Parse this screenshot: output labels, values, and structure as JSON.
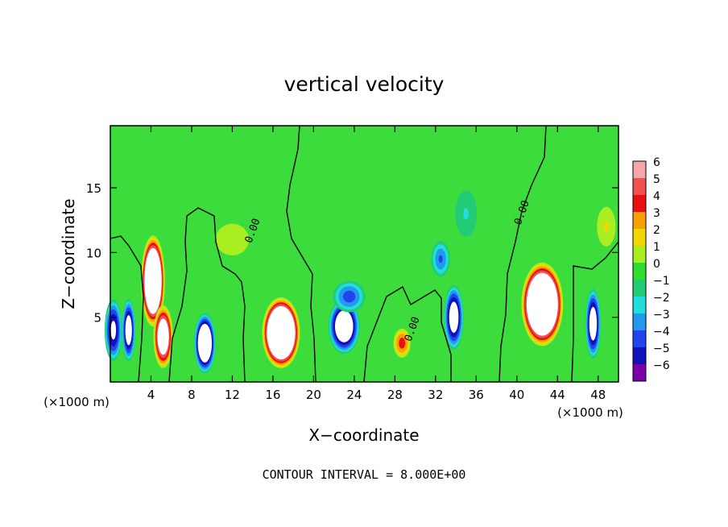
{
  "chart_data": {
    "type": "heatmap",
    "title": "vertical velocity",
    "xlabel": "X−coordinate",
    "ylabel": "Z−coordinate",
    "x_unit_left": "(×1000 m)",
    "x_unit_right": "(×1000 m)",
    "footer": "CONTOUR INTERVAL = 8.000E+00",
    "xlim": [
      0,
      50
    ],
    "ylim": [
      0,
      19.8
    ],
    "x_ticks": [
      "4",
      "8",
      "12",
      "16",
      "20",
      "24",
      "28",
      "32",
      "36",
      "40",
      "44",
      "48"
    ],
    "y_ticks": [
      "5",
      "10",
      "15"
    ],
    "colorbar": {
      "labels": [
        "6",
        "5",
        "4",
        "3",
        "2",
        "1",
        "0",
        "−1",
        "−2",
        "−3",
        "−4",
        "−5",
        "−6"
      ],
      "colors": [
        "#f6a8a8",
        "#f05050",
        "#e81010",
        "#f7a000",
        "#f2d800",
        "#aaee22",
        "#2fdd2f",
        "#22cc77",
        "#22dddd",
        "#2299ee",
        "#2244ee",
        "#1111bb",
        "#7a00aa"
      ]
    },
    "contour_labels": [
      {
        "text": "0.00",
        "x": 14.3,
        "y": 11.6
      },
      {
        "text": "0.00",
        "x": 30.0,
        "y": 4.0
      },
      {
        "text": "0.00",
        "x": 40.8,
        "y": 13.0
      }
    ],
    "cells": [
      {
        "x": 0.3,
        "z": 4.0,
        "w": -6,
        "sx": 0.9,
        "sz": 2.5
      },
      {
        "x": 1.8,
        "z": 4.0,
        "w": -7,
        "sx": 0.7,
        "sz": 2.5
      },
      {
        "x": 4.2,
        "z": 7.8,
        "w": 11,
        "sx": 1.2,
        "sz": 3.6
      },
      {
        "x": 5.2,
        "z": 3.5,
        "w": 8,
        "sx": 1.0,
        "sz": 2.5
      },
      {
        "x": 9.3,
        "z": 3.0,
        "w": -9,
        "sx": 1.1,
        "sz": 2.4
      },
      {
        "x": 16.8,
        "z": 3.8,
        "w": 12,
        "sx": 1.9,
        "sz": 2.8
      },
      {
        "x": 23.0,
        "z": 4.3,
        "w": -8,
        "sx": 1.6,
        "sz": 2.2
      },
      {
        "x": 23.5,
        "z": 6.6,
        "w": -4,
        "sx": 1.7,
        "sz": 1.3
      },
      {
        "x": 28.7,
        "z": 3.0,
        "w": 4,
        "sx": 0.9,
        "sz": 1.2
      },
      {
        "x": 33.8,
        "z": 5.0,
        "w": -7,
        "sx": 1.0,
        "sz": 2.6
      },
      {
        "x": 32.5,
        "z": 9.5,
        "w": -3.5,
        "sx": 1.0,
        "sz": 1.5
      },
      {
        "x": 35.0,
        "z": 13.0,
        "w": -1.5,
        "sx": 1.3,
        "sz": 2.2
      },
      {
        "x": 42.5,
        "z": 6.0,
        "w": 12,
        "sx": 2.1,
        "sz": 3.3
      },
      {
        "x": 47.5,
        "z": 4.5,
        "w": -7,
        "sx": 0.8,
        "sz": 2.8
      },
      {
        "x": 48.8,
        "z": 12.0,
        "w": 1.2,
        "sx": 1.2,
        "sz": 2.0
      },
      {
        "x": 12.0,
        "z": 11.0,
        "w": 0.6,
        "sx": 4.0,
        "sz": 3.0
      }
    ]
  }
}
